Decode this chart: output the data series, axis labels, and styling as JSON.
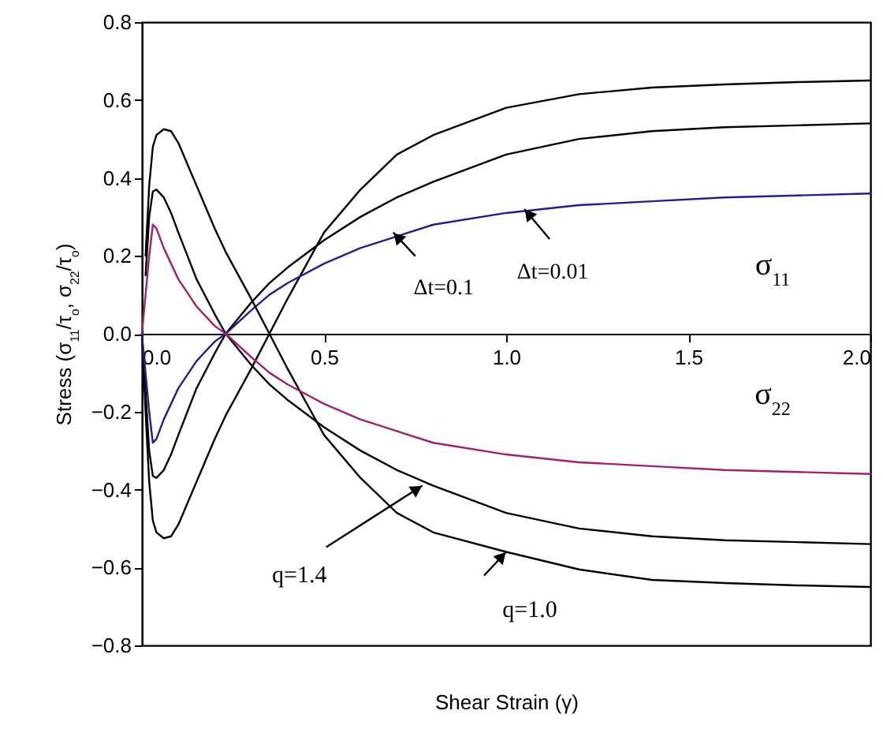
{
  "chart_data": {
    "type": "line",
    "xlabel": "Shear Strain (γ)",
    "ylabel": "Stress  (σ$_{11}$/τ$_{o}$, σ$_{22}$/τ$_{o}$)",
    "x": [
      0,
      0.01,
      0.02,
      0.03,
      0.04,
      0.06,
      0.08,
      0.1,
      0.15,
      0.2,
      0.23,
      0.3,
      0.35,
      0.4,
      0.5,
      0.6,
      0.7,
      0.8,
      1.0,
      1.2,
      1.4,
      1.6,
      1.8,
      2.0
    ],
    "series": [
      {
        "color": "#000000",
        "values": [
          0,
          -0.2,
          -0.38,
          -0.48,
          -0.51,
          -0.525,
          -0.52,
          -0.49,
          -0.38,
          -0.27,
          -0.21,
          -0.09,
          0,
          0.09,
          0.26,
          0.37,
          0.46,
          0.51,
          0.58,
          0.615,
          0.632,
          0.64,
          0.646,
          0.65
        ]
      },
      {
        "color": "#000000",
        "values": [
          0,
          -0.15,
          -0.3,
          -0.365,
          -0.37,
          -0.35,
          -0.31,
          -0.26,
          -0.14,
          -0.05,
          0,
          0.08,
          0.13,
          0.17,
          0.24,
          0.3,
          0.35,
          0.39,
          0.46,
          0.5,
          0.52,
          0.53,
          0.535,
          0.54
        ]
      },
      {
        "color": "#20208a",
        "values": [
          0,
          -0.1,
          -0.2,
          -0.28,
          -0.27,
          -0.22,
          -0.18,
          -0.14,
          -0.07,
          -0.02,
          0,
          0.06,
          0.1,
          0.13,
          0.18,
          0.22,
          0.25,
          0.28,
          0.31,
          0.33,
          0.34,
          0.35,
          0.355,
          0.36
        ]
      },
      {
        "color": "#000000",
        "values": [
          null,
          0.2,
          0.38,
          0.48,
          0.51,
          0.525,
          0.52,
          0.49,
          0.38,
          0.27,
          0.21,
          0.09,
          0,
          -0.09,
          -0.26,
          -0.37,
          -0.46,
          -0.51,
          -0.56,
          -0.605,
          -0.632,
          -0.64,
          -0.646,
          -0.65
        ]
      },
      {
        "color": "#000000",
        "values": [
          null,
          0.15,
          0.3,
          0.365,
          0.37,
          0.35,
          0.31,
          0.26,
          0.14,
          0.05,
          0,
          -0.08,
          -0.13,
          -0.17,
          -0.24,
          -0.3,
          -0.35,
          -0.39,
          -0.46,
          -0.5,
          -0.52,
          -0.53,
          -0.535,
          -0.54
        ]
      },
      {
        "color": "#a0206e",
        "values": [
          0,
          0.1,
          0.2,
          0.28,
          0.27,
          0.22,
          0.18,
          0.14,
          0.07,
          0.02,
          0,
          -0.06,
          -0.1,
          -0.13,
          -0.18,
          -0.22,
          -0.25,
          -0.28,
          -0.31,
          -0.33,
          -0.34,
          -0.35,
          -0.355,
          -0.36
        ]
      }
    ],
    "xlim": [
      0,
      2.0
    ],
    "ylim": [
      -0.8,
      0.8
    ],
    "xticks": [
      {
        "value": 0,
        "label": "0.0"
      },
      0.5,
      {
        "value": 1,
        "label": "1.0"
      },
      1.5,
      {
        "value": 2,
        "label": "2.0"
      }
    ],
    "yticks": [
      -0.8,
      -0.6,
      -0.4,
      -0.2,
      {
        "value": 0,
        "label": "0.0"
      },
      0.2,
      0.4,
      0.6,
      0.8
    ],
    "annotations": [
      {
        "text": "Δt=0.1",
        "x": 0.69,
        "y": 0.26
      },
      {
        "text": "Δt=0.01",
        "x": 1.05,
        "y": 0.32
      },
      {
        "text": "q=1.4",
        "x": 0.77,
        "y": -0.39
      },
      {
        "text": "q=1.0",
        "x": 1.0,
        "y": -0.56
      },
      "σ$_{11}$",
      "σ$_{22}$"
    ]
  }
}
